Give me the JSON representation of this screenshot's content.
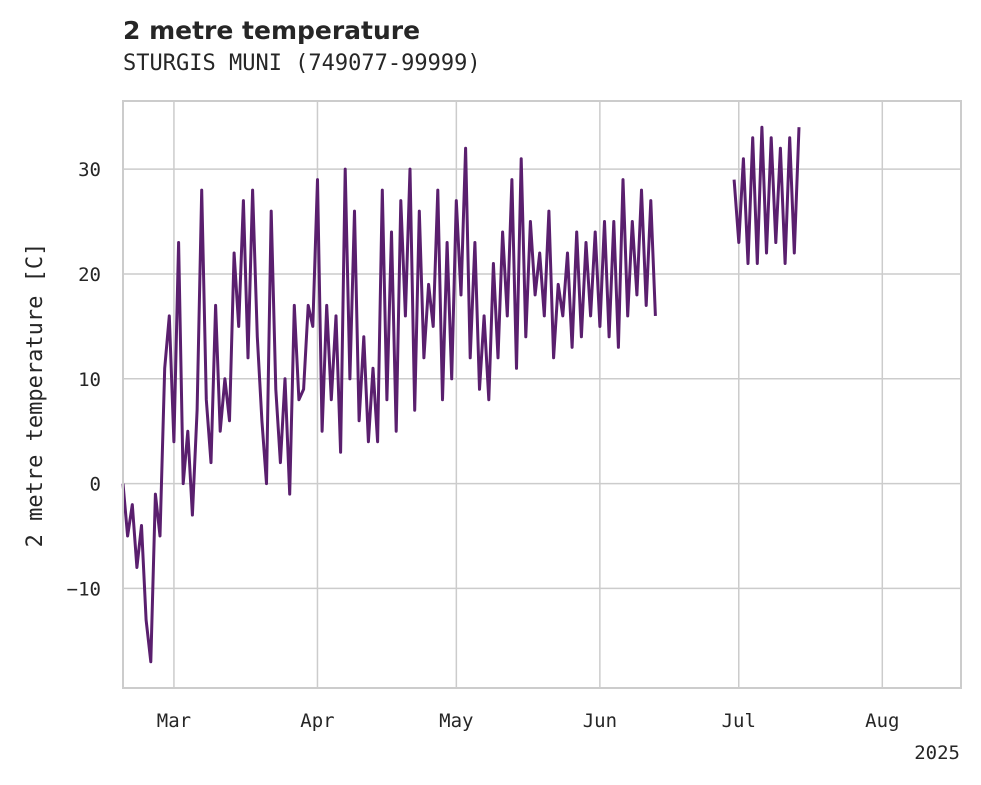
{
  "chart_data": {
    "type": "line",
    "title": "2 metre temperature",
    "subtitle": "STURGIS MUNI (749077-99999)",
    "ylabel": "2 metre temperature [C]",
    "xlabel": "",
    "year_label": "2025",
    "x_ticks": [
      "Mar",
      "Apr",
      "May",
      "Jun",
      "Jul",
      "Aug"
    ],
    "x_tick_dates": [
      "2025-03-01",
      "2025-04-01",
      "2025-05-01",
      "2025-06-01",
      "2025-07-01",
      "2025-08-01"
    ],
    "y_ticks": [
      "−10",
      "0",
      "10",
      "20",
      "30"
    ],
    "y_tick_values": [
      -10,
      0,
      10,
      20,
      30
    ],
    "xlim": [
      "2025-02-18",
      "2025-08-18"
    ],
    "ylim": [
      -19.5,
      36.5
    ],
    "grid": true,
    "legend": "none",
    "line_color": "#5a1f6e",
    "grid_color": "#cccccc",
    "series": [
      {
        "segments": [
          {
            "x": [
              "2025-02-18",
              "2025-02-19",
              "2025-02-20",
              "2025-02-21",
              "2025-02-22",
              "2025-02-23",
              "2025-02-24",
              "2025-02-25",
              "2025-02-26",
              "2025-02-27",
              "2025-02-28",
              "2025-03-01",
              "2025-03-02",
              "2025-03-03",
              "2025-03-04",
              "2025-03-05",
              "2025-03-06",
              "2025-03-07",
              "2025-03-08",
              "2025-03-09",
              "2025-03-10",
              "2025-03-11",
              "2025-03-12",
              "2025-03-13",
              "2025-03-14",
              "2025-03-15",
              "2025-03-16",
              "2025-03-17",
              "2025-03-18",
              "2025-03-19",
              "2025-03-20",
              "2025-03-21",
              "2025-03-22",
              "2025-03-23",
              "2025-03-24",
              "2025-03-25",
              "2025-03-26",
              "2025-03-27",
              "2025-03-28",
              "2025-03-29",
              "2025-03-30",
              "2025-03-31",
              "2025-04-01",
              "2025-04-02",
              "2025-04-03",
              "2025-04-04",
              "2025-04-05",
              "2025-04-06",
              "2025-04-07",
              "2025-04-08",
              "2025-04-09",
              "2025-04-10",
              "2025-04-11",
              "2025-04-12",
              "2025-04-13",
              "2025-04-14",
              "2025-04-15",
              "2025-04-16",
              "2025-04-17",
              "2025-04-18",
              "2025-04-19",
              "2025-04-20",
              "2025-04-21",
              "2025-04-22",
              "2025-04-23",
              "2025-04-24",
              "2025-04-25",
              "2025-04-26",
              "2025-04-27",
              "2025-04-28",
              "2025-04-29",
              "2025-04-30",
              "2025-05-01",
              "2025-05-02",
              "2025-05-03",
              "2025-05-04",
              "2025-05-05",
              "2025-05-06",
              "2025-05-07",
              "2025-05-08",
              "2025-05-09",
              "2025-05-10",
              "2025-05-11",
              "2025-05-12",
              "2025-05-13",
              "2025-05-14",
              "2025-05-15",
              "2025-05-16",
              "2025-05-17",
              "2025-05-18",
              "2025-05-19",
              "2025-05-20",
              "2025-05-21",
              "2025-05-22",
              "2025-05-23",
              "2025-05-24",
              "2025-05-25",
              "2025-05-26",
              "2025-05-27",
              "2025-05-28",
              "2025-05-29",
              "2025-05-30",
              "2025-05-31",
              "2025-06-01",
              "2025-06-02",
              "2025-06-03",
              "2025-06-04",
              "2025-06-05",
              "2025-06-06",
              "2025-06-07",
              "2025-06-08",
              "2025-06-09",
              "2025-06-10",
              "2025-06-11",
              "2025-06-12",
              "2025-06-13"
            ],
            "y": [
              0,
              -5,
              -2,
              -8,
              -4,
              -13,
              -17,
              -1,
              -5,
              11,
              16,
              4,
              23,
              0,
              5,
              -3,
              7,
              28,
              8,
              2,
              17,
              5,
              10,
              6,
              22,
              15,
              27,
              12,
              28,
              14,
              6,
              0,
              26,
              9,
              2,
              10,
              -1,
              17,
              8,
              9,
              17,
              15,
              29,
              5,
              17,
              8,
              16,
              3,
              30,
              10,
              26,
              6,
              14,
              4,
              11,
              4,
              28,
              8,
              24,
              5,
              27,
              16,
              30,
              7,
              26,
              12,
              19,
              15,
              28,
              8,
              23,
              10,
              27,
              18,
              32,
              12,
              23,
              9,
              16,
              8,
              21,
              12,
              24,
              16,
              29,
              11,
              31,
              14,
              25,
              18,
              22,
              16,
              26,
              12,
              19,
              16,
              22,
              13,
              24,
              14,
              23,
              16,
              24,
              15,
              25,
              14,
              25,
              13,
              29,
              16,
              25,
              18,
              28,
              17,
              27,
              16
            ]
          },
          {
            "x": [
              "2025-06-30",
              "2025-07-01",
              "2025-07-02",
              "2025-07-03",
              "2025-07-04",
              "2025-07-05",
              "2025-07-06",
              "2025-07-07",
              "2025-07-08",
              "2025-07-09",
              "2025-07-10",
              "2025-07-11",
              "2025-07-12",
              "2025-07-13",
              "2025-07-14"
            ],
            "y": [
              29,
              23,
              31,
              21,
              33,
              21,
              34,
              22,
              33,
              23,
              32,
              21,
              33,
              22,
              34
            ]
          }
        ]
      }
    ]
  }
}
